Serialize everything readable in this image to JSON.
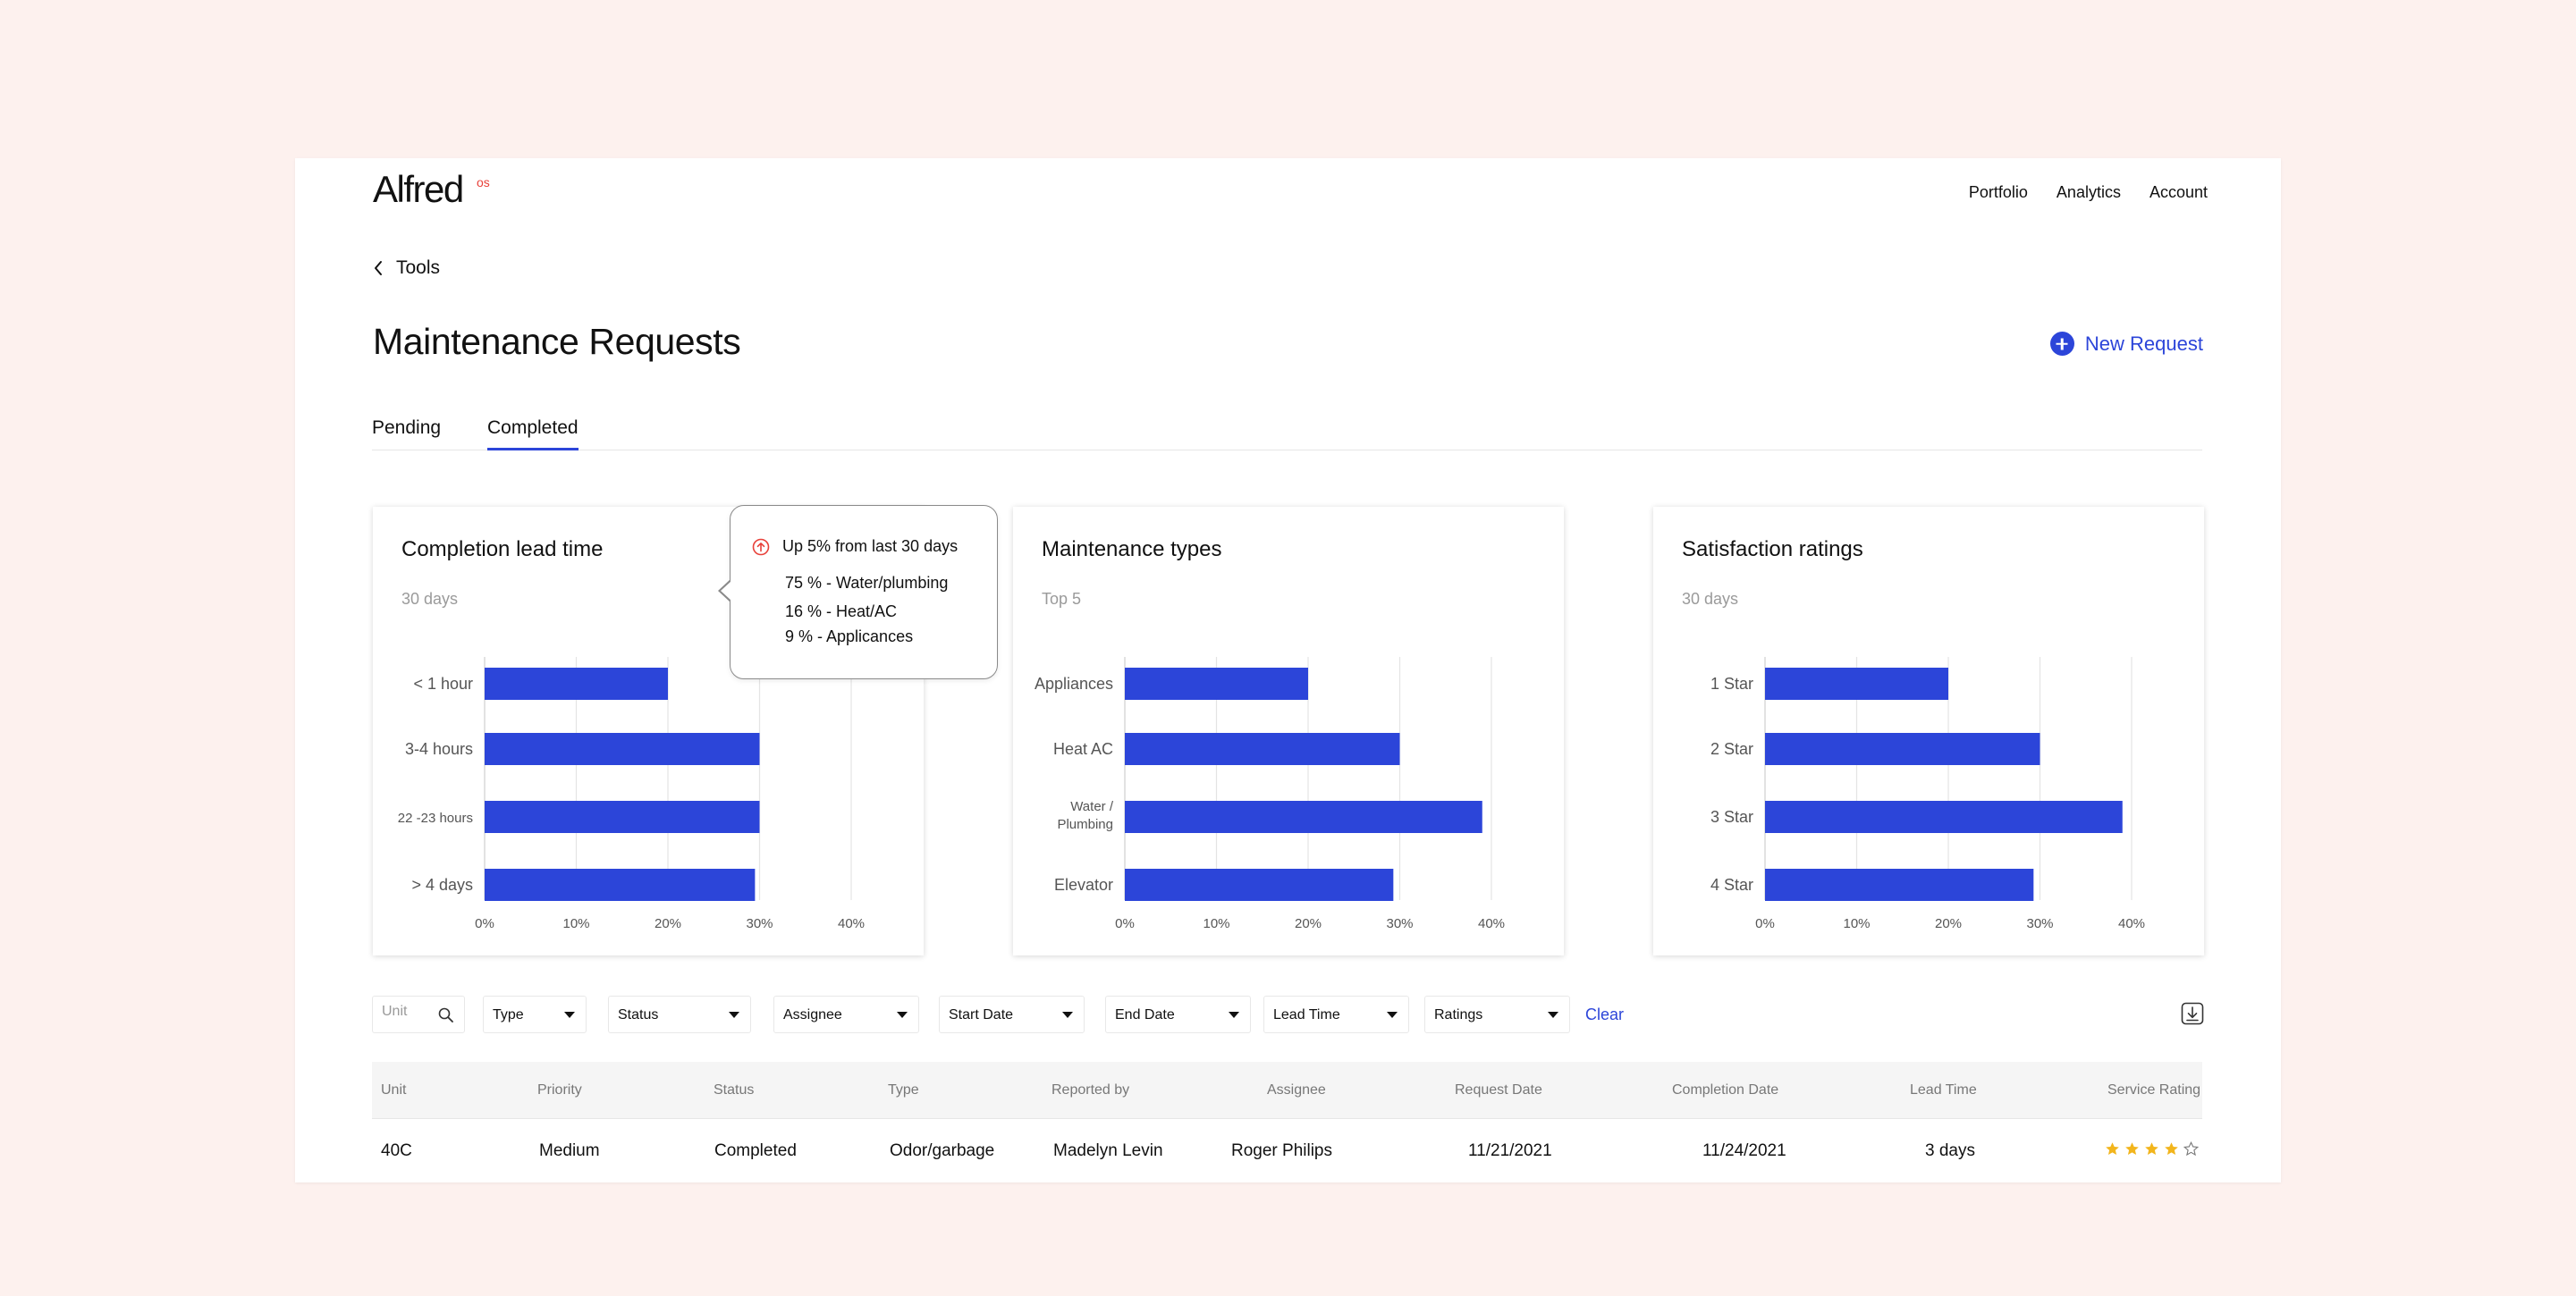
{
  "brand": {
    "name": "Alfred",
    "superscript": "os"
  },
  "nav": {
    "items": [
      "Portfolio",
      "Analytics",
      "Account"
    ]
  },
  "back": {
    "label": "Tools"
  },
  "page": {
    "title": "Maintenance Requests",
    "new_request_label": "New Request"
  },
  "tabs": [
    {
      "label": "Pending",
      "active": false
    },
    {
      "label": "Completed",
      "active": true
    }
  ],
  "cards": [
    {
      "title": "Completion lead time",
      "subtitle": "30 days"
    },
    {
      "title": "Maintenance types",
      "subtitle": "Top 5"
    },
    {
      "title": "Satisfaction ratings",
      "subtitle": "30 days"
    }
  ],
  "chart_data": [
    {
      "type": "bar",
      "orientation": "horizontal",
      "title": "Completion lead time",
      "subtitle": "30 days",
      "categories": [
        "< 1 hour",
        "3-4 hours",
        "22 -23 hours",
        "> 4 days"
      ],
      "values": [
        20,
        30,
        30,
        29.5
      ],
      "xlim": [
        0,
        40
      ],
      "x_ticks": [
        "0%",
        "10%",
        "20%",
        "30%",
        "40%"
      ],
      "color": "#2c45d9",
      "grid": true
    },
    {
      "type": "bar",
      "orientation": "horizontal",
      "title": "Maintenance types",
      "subtitle": "Top 5",
      "categories": [
        "Appliances",
        "Heat AC",
        "Water / Plumbing",
        "Elevator"
      ],
      "values": [
        20,
        30,
        39,
        29.3
      ],
      "xlim": [
        0,
        40
      ],
      "x_ticks": [
        "0%",
        "10%",
        "20%",
        "30%",
        "40%"
      ],
      "color": "#2c45d9",
      "grid": true
    },
    {
      "type": "bar",
      "orientation": "horizontal",
      "title": "Satisfaction ratings",
      "subtitle": "30 days",
      "categories": [
        "1 Star",
        "2 Star",
        "3 Star",
        "4 Star"
      ],
      "values": [
        20,
        30,
        39,
        29.3
      ],
      "xlim": [
        0,
        40
      ],
      "x_ticks": [
        "0%",
        "10%",
        "20%",
        "30%",
        "40%"
      ],
      "color": "#2c45d9",
      "grid": true
    }
  ],
  "tooltip": {
    "headline": "Up 5% from last 30 days",
    "lines": [
      "75 % - Water/plumbing",
      "16 % - Heat/AC",
      "9 % - Applicances"
    ]
  },
  "filters": {
    "unit_placeholder": "Unit",
    "selects": [
      "Type",
      "Status",
      "Assignee",
      "Start Date",
      "End Date",
      "Lead Time",
      "Ratings"
    ],
    "clear_label": "Clear"
  },
  "table": {
    "columns": [
      "Unit",
      "Priority",
      "Status",
      "Type",
      "Reported by",
      "Assignee",
      "Request Date",
      "Completion Date",
      "Lead Time",
      "Service Rating"
    ],
    "rows": [
      {
        "unit": "40C",
        "priority": "Medium",
        "status": "Completed",
        "type": "Odor/garbage",
        "reported_by": "Madelyn Levin",
        "assignee": "Roger Philips",
        "request_date": "11/21/2021",
        "completion_date": "11/24/2021",
        "lead_time": "3 days",
        "rating": 4,
        "rating_max": 5
      }
    ]
  },
  "colors": {
    "accent": "#2c45d9",
    "brand_red": "#e8413a",
    "star": "#f2b51c",
    "background": "#fdf1ee"
  }
}
